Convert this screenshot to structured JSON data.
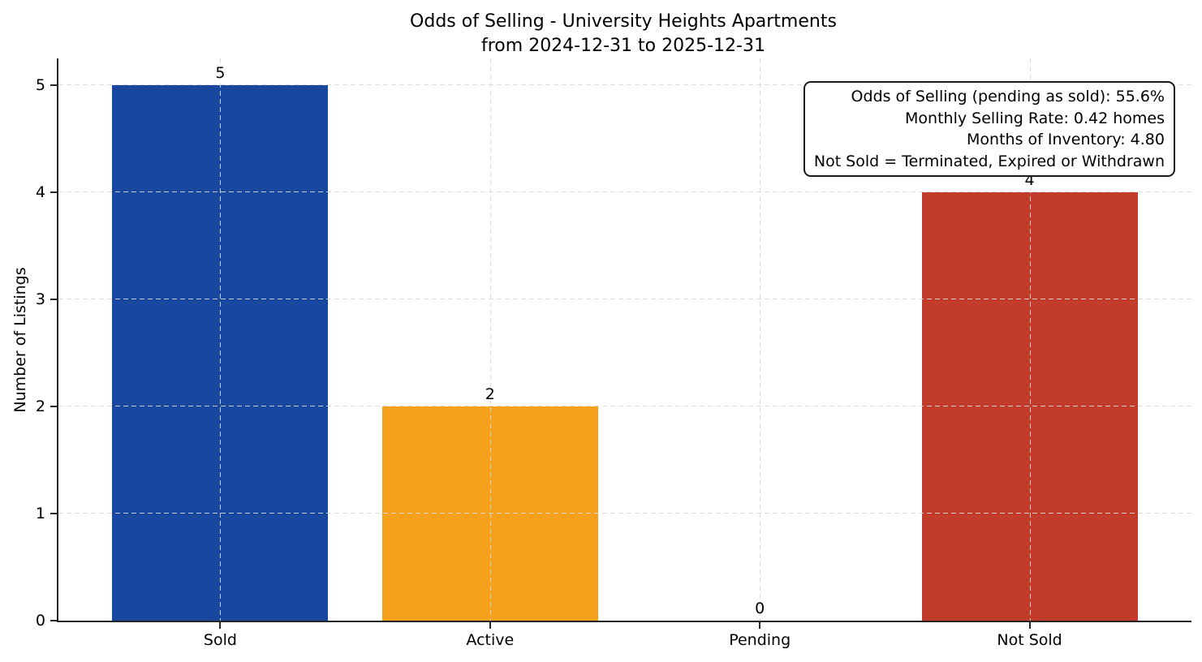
{
  "figure": {
    "background": "#ffffff"
  },
  "chart_data": {
    "type": "bar",
    "title": "Odds of Selling - University Heights Apartments",
    "subtitle": "from 2024-12-31 to 2025-12-31",
    "ylabel": "Number of Listings",
    "categories": [
      "Sold",
      "Active",
      "Pending",
      "Not Sold"
    ],
    "values": [
      5,
      2,
      0,
      4
    ],
    "bar_colors": [
      "#17479e",
      "#f5a11c",
      null,
      "#c23b2b"
    ],
    "value_labels": [
      "5",
      "2",
      "0",
      "4"
    ],
    "yticks": [
      0,
      1,
      2,
      3,
      4,
      5
    ],
    "ylim": [
      0,
      5.25
    ],
    "grid": true,
    "legend": "none",
    "annotation": {
      "position": "top-right",
      "lines": [
        "Odds of Selling (pending as sold): 55.6%",
        "Monthly Selling Rate: 0.42 homes",
        "Months of Inventory: 4.80",
        "Not Sold = Terminated, Expired or Withdrawn"
      ]
    },
    "style": {
      "spine_color": "#262626",
      "grid_color": "#d9d9d9",
      "text_color": "#000000",
      "annotation_border_color": "#1a1a1a"
    }
  }
}
